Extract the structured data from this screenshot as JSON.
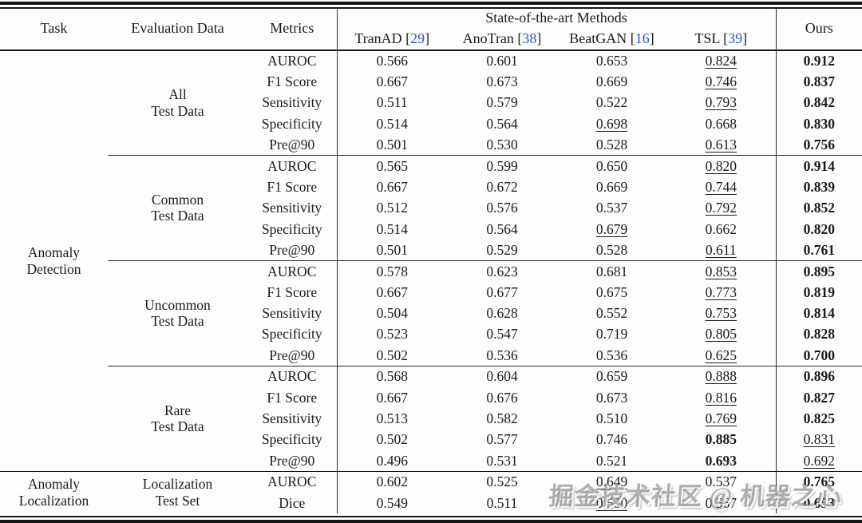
{
  "colors": {
    "citation": "#2c56c8",
    "text": "#1b1b1b",
    "rule": "#151515"
  },
  "watermark": {
    "text": "掘金技术社区 @ 机器之心"
  },
  "header": {
    "task": "Task",
    "evaluation_data": "Evaluation Data",
    "metrics": "Metrics",
    "sota_group": "State-of-the-art Methods",
    "ours": "Ours",
    "methods": [
      {
        "name": "TranAD",
        "cite": "29"
      },
      {
        "name": "AnoTran",
        "cite": "38"
      },
      {
        "name": "BeatGAN",
        "cite": "16"
      },
      {
        "name": "TSL",
        "cite": "39"
      }
    ]
  },
  "style_legend": {
    "n": "normal",
    "u": "underlined (second best)",
    "b": "bold (best)"
  },
  "sections": [
    {
      "task": [
        "Anomaly",
        "Detection"
      ],
      "blocks": [
        {
          "eval": [
            "All",
            "Test Data"
          ],
          "rows": [
            {
              "metric": "AUROC",
              "values": [
                "0.566",
                "0.601",
                "0.653",
                "0.824",
                "0.912"
              ],
              "styles": [
                "n",
                "n",
                "n",
                "u",
                "b"
              ]
            },
            {
              "metric": "F1 Score",
              "values": [
                "0.667",
                "0.673",
                "0.669",
                "0.746",
                "0.837"
              ],
              "styles": [
                "n",
                "n",
                "n",
                "u",
                "b"
              ]
            },
            {
              "metric": "Sensitivity",
              "values": [
                "0.511",
                "0.579",
                "0.522",
                "0.793",
                "0.842"
              ],
              "styles": [
                "n",
                "n",
                "n",
                "u",
                "b"
              ]
            },
            {
              "metric": "Specificity",
              "values": [
                "0.514",
                "0.564",
                "0.698",
                "0.668",
                "0.830"
              ],
              "styles": [
                "n",
                "n",
                "u",
                "n",
                "b"
              ]
            },
            {
              "metric": "Pre@90",
              "values": [
                "0.501",
                "0.530",
                "0.528",
                "0.613",
                "0.756"
              ],
              "styles": [
                "n",
                "n",
                "n",
                "u",
                "b"
              ]
            }
          ]
        },
        {
          "eval": [
            "Common",
            "Test Data"
          ],
          "rows": [
            {
              "metric": "AUROC",
              "values": [
                "0.565",
                "0.599",
                "0.650",
                "0.820",
                "0.914"
              ],
              "styles": [
                "n",
                "n",
                "n",
                "u",
                "b"
              ]
            },
            {
              "metric": "F1 Score",
              "values": [
                "0.667",
                "0.672",
                "0.669",
                "0.744",
                "0.839"
              ],
              "styles": [
                "n",
                "n",
                "n",
                "u",
                "b"
              ]
            },
            {
              "metric": "Sensitivity",
              "values": [
                "0.512",
                "0.576",
                "0.537",
                "0.792",
                "0.852"
              ],
              "styles": [
                "n",
                "n",
                "n",
                "u",
                "b"
              ]
            },
            {
              "metric": "Specificity",
              "values": [
                "0.514",
                "0.564",
                "0.679",
                "0.662",
                "0.820"
              ],
              "styles": [
                "n",
                "n",
                "u",
                "n",
                "b"
              ]
            },
            {
              "metric": "Pre@90",
              "values": [
                "0.501",
                "0.529",
                "0.528",
                "0.611",
                "0.761"
              ],
              "styles": [
                "n",
                "n",
                "n",
                "u",
                "b"
              ]
            }
          ]
        },
        {
          "eval": [
            "Uncommon",
            "Test Data"
          ],
          "rows": [
            {
              "metric": "AUROC",
              "values": [
                "0.578",
                "0.623",
                "0.681",
                "0.853",
                "0.895"
              ],
              "styles": [
                "n",
                "n",
                "n",
                "u",
                "b"
              ]
            },
            {
              "metric": "F1 Score",
              "values": [
                "0.667",
                "0.677",
                "0.675",
                "0.773",
                "0.819"
              ],
              "styles": [
                "n",
                "n",
                "n",
                "u",
                "b"
              ]
            },
            {
              "metric": "Sensitivity",
              "values": [
                "0.504",
                "0.628",
                "0.552",
                "0.753",
                "0.814"
              ],
              "styles": [
                "n",
                "n",
                "n",
                "u",
                "b"
              ]
            },
            {
              "metric": "Specificity",
              "values": [
                "0.523",
                "0.547",
                "0.719",
                "0.805",
                "0.828"
              ],
              "styles": [
                "n",
                "n",
                "n",
                "u",
                "b"
              ]
            },
            {
              "metric": "Pre@90",
              "values": [
                "0.502",
                "0.536",
                "0.536",
                "0.625",
                "0.700"
              ],
              "styles": [
                "n",
                "n",
                "n",
                "u",
                "b"
              ]
            }
          ]
        },
        {
          "eval": [
            "Rare",
            "Test Data"
          ],
          "rows": [
            {
              "metric": "AUROC",
              "values": [
                "0.568",
                "0.604",
                "0.659",
                "0.888",
                "0.896"
              ],
              "styles": [
                "n",
                "n",
                "n",
                "u",
                "b"
              ]
            },
            {
              "metric": "F1 Score",
              "values": [
                "0.667",
                "0.676",
                "0.673",
                "0.816",
                "0.827"
              ],
              "styles": [
                "n",
                "n",
                "n",
                "u",
                "b"
              ]
            },
            {
              "metric": "Sensitivity",
              "values": [
                "0.513",
                "0.582",
                "0.510",
                "0.769",
                "0.825"
              ],
              "styles": [
                "n",
                "n",
                "n",
                "u",
                "b"
              ]
            },
            {
              "metric": "Specificity",
              "values": [
                "0.502",
                "0.577",
                "0.746",
                "0.885",
                "0.831"
              ],
              "styles": [
                "n",
                "n",
                "n",
                "b",
                "u"
              ]
            },
            {
              "metric": "Pre@90",
              "values": [
                "0.496",
                "0.531",
                "0.521",
                "0.693",
                "0.692"
              ],
              "styles": [
                "n",
                "n",
                "n",
                "b",
                "u"
              ]
            }
          ]
        }
      ]
    },
    {
      "task": [
        "Anomaly",
        "Localization"
      ],
      "blocks": [
        {
          "eval": [
            "Localization",
            "Test Set"
          ],
          "rows": [
            {
              "metric": "AUROC",
              "values": [
                "0.602",
                "0.525",
                "0.649",
                "0.537",
                "0.765"
              ],
              "styles": [
                "n",
                "n",
                "u",
                "n",
                "b"
              ]
            },
            {
              "metric": "Dice",
              "values": [
                "0.549",
                "0.511",
                "0.580",
                "0.567",
                "0.653"
              ],
              "styles": [
                "n",
                "n",
                "u",
                "n",
                "b"
              ]
            }
          ]
        }
      ]
    }
  ]
}
